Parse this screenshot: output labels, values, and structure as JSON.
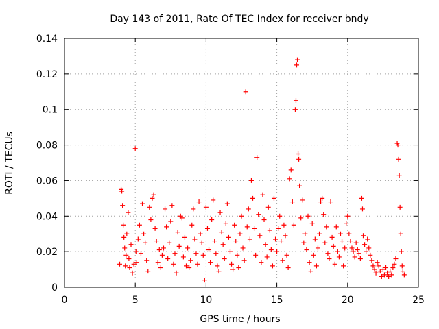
{
  "chart_data": {
    "type": "scatter",
    "title": "Day 143 of 2011, Rate Of TEC Index for receiver bndy",
    "xlabel": "GPS time / hours",
    "ylabel": "ROTI / TECUs",
    "xlim": [
      0,
      25
    ],
    "ylim": [
      0,
      0.14
    ],
    "xticks": [
      0,
      5,
      10,
      15,
      20,
      25
    ],
    "yticks": [
      0,
      0.02,
      0.04,
      0.06,
      0.08,
      0.1,
      0.12,
      0.14
    ],
    "ytick_labels": [
      "0",
      "0.02",
      "0.04",
      "0.06",
      "0.08",
      "0.1",
      "0.12",
      "0.14"
    ],
    "grid": true,
    "marker": "plus",
    "color": "#ff0000",
    "series": [
      {
        "points": [
          [
            3.9,
            0.013
          ],
          [
            4.0,
            0.055
          ],
          [
            4.05,
            0.054
          ],
          [
            4.1,
            0.046
          ],
          [
            4.15,
            0.035
          ],
          [
            4.2,
            0.028
          ],
          [
            4.25,
            0.022
          ],
          [
            4.3,
            0.012
          ],
          [
            4.35,
            0.018
          ],
          [
            4.4,
            0.03
          ],
          [
            4.5,
            0.042
          ],
          [
            4.55,
            0.016
          ],
          [
            4.6,
            0.011
          ],
          [
            4.7,
            0.024
          ],
          [
            4.8,
            0.008
          ],
          [
            4.9,
            0.013
          ],
          [
            5.0,
            0.078
          ],
          [
            5.05,
            0.02
          ],
          [
            5.1,
            0.014
          ],
          [
            5.2,
            0.027
          ],
          [
            5.3,
            0.035
          ],
          [
            5.4,
            0.019
          ],
          [
            5.5,
            0.047
          ],
          [
            5.6,
            0.03
          ],
          [
            5.7,
            0.025
          ],
          [
            5.8,
            0.015
          ],
          [
            5.9,
            0.009
          ],
          [
            6.0,
            0.045
          ],
          [
            6.1,
            0.038
          ],
          [
            6.2,
            0.05
          ],
          [
            6.3,
            0.052
          ],
          [
            6.4,
            0.033
          ],
          [
            6.5,
            0.026
          ],
          [
            6.6,
            0.014
          ],
          [
            6.7,
            0.021
          ],
          [
            6.8,
            0.011
          ],
          [
            6.9,
            0.018
          ],
          [
            7.0,
            0.022
          ],
          [
            7.1,
            0.044
          ],
          [
            7.2,
            0.034
          ],
          [
            7.3,
            0.016
          ],
          [
            7.4,
            0.025
          ],
          [
            7.5,
            0.037
          ],
          [
            7.6,
            0.046
          ],
          [
            7.7,
            0.013
          ],
          [
            7.8,
            0.019
          ],
          [
            7.9,
            0.008
          ],
          [
            8.0,
            0.031
          ],
          [
            8.1,
            0.023
          ],
          [
            8.2,
            0.04
          ],
          [
            8.3,
            0.039
          ],
          [
            8.4,
            0.017
          ],
          [
            8.5,
            0.028
          ],
          [
            8.6,
            0.012
          ],
          [
            8.7,
            0.022
          ],
          [
            8.8,
            0.011
          ],
          [
            8.9,
            0.015
          ],
          [
            9.0,
            0.035
          ],
          [
            9.1,
            0.044
          ],
          [
            9.2,
            0.027
          ],
          [
            9.3,
            0.019
          ],
          [
            9.4,
            0.013
          ],
          [
            9.5,
            0.048
          ],
          [
            9.6,
            0.03
          ],
          [
            9.7,
            0.025
          ],
          [
            9.8,
            0.018
          ],
          [
            9.9,
            0.004
          ],
          [
            10.0,
            0.045
          ],
          [
            10.1,
            0.033
          ],
          [
            10.2,
            0.021
          ],
          [
            10.3,
            0.014
          ],
          [
            10.4,
            0.038
          ],
          [
            10.5,
            0.049
          ],
          [
            10.6,
            0.026
          ],
          [
            10.7,
            0.019
          ],
          [
            10.8,
            0.012
          ],
          [
            10.9,
            0.009
          ],
          [
            11.0,
            0.042
          ],
          [
            11.1,
            0.031
          ],
          [
            11.2,
            0.024
          ],
          [
            11.3,
            0.016
          ],
          [
            11.4,
            0.036
          ],
          [
            11.5,
            0.047
          ],
          [
            11.6,
            0.028
          ],
          [
            11.7,
            0.02
          ],
          [
            11.8,
            0.013
          ],
          [
            11.9,
            0.01
          ],
          [
            12.0,
            0.035
          ],
          [
            12.1,
            0.026
          ],
          [
            12.2,
            0.018
          ],
          [
            12.3,
            0.011
          ],
          [
            12.4,
            0.03
          ],
          [
            12.5,
            0.04
          ],
          [
            12.6,
            0.022
          ],
          [
            12.7,
            0.015
          ],
          [
            12.8,
            0.11
          ],
          [
            12.9,
            0.034
          ],
          [
            13.0,
            0.044
          ],
          [
            13.1,
            0.027
          ],
          [
            13.2,
            0.06
          ],
          [
            13.3,
            0.05
          ],
          [
            13.4,
            0.033
          ],
          [
            13.5,
            0.018
          ],
          [
            13.6,
            0.073
          ],
          [
            13.7,
            0.041
          ],
          [
            13.8,
            0.029
          ],
          [
            13.9,
            0.014
          ],
          [
            14.0,
            0.052
          ],
          [
            14.1,
            0.038
          ],
          [
            14.2,
            0.024
          ],
          [
            14.3,
            0.017
          ],
          [
            14.4,
            0.045
          ],
          [
            14.5,
            0.032
          ],
          [
            14.6,
            0.021
          ],
          [
            14.7,
            0.012
          ],
          [
            14.8,
            0.05
          ],
          [
            14.9,
            0.027
          ],
          [
            15.0,
            0.02
          ],
          [
            15.1,
            0.033
          ],
          [
            15.2,
            0.04
          ],
          [
            15.3,
            0.026
          ],
          [
            15.4,
            0.015
          ],
          [
            15.5,
            0.035
          ],
          [
            15.6,
            0.029
          ],
          [
            15.7,
            0.018
          ],
          [
            15.8,
            0.011
          ],
          [
            15.9,
            0.061
          ],
          [
            16.0,
            0.066
          ],
          [
            16.1,
            0.048
          ],
          [
            16.2,
            0.035
          ],
          [
            16.3,
            0.1
          ],
          [
            16.35,
            0.105
          ],
          [
            16.4,
            0.125
          ],
          [
            16.45,
            0.128
          ],
          [
            16.5,
            0.075
          ],
          [
            16.55,
            0.072
          ],
          [
            16.6,
            0.057
          ],
          [
            16.7,
            0.039
          ],
          [
            16.8,
            0.049
          ],
          [
            16.9,
            0.025
          ],
          [
            17.0,
            0.03
          ],
          [
            17.1,
            0.021
          ],
          [
            17.2,
            0.04
          ],
          [
            17.3,
            0.014
          ],
          [
            17.4,
            0.009
          ],
          [
            17.5,
            0.036
          ],
          [
            17.6,
            0.018
          ],
          [
            17.7,
            0.027
          ],
          [
            17.8,
            0.012
          ],
          [
            17.9,
            0.022
          ],
          [
            18.0,
            0.03
          ],
          [
            18.1,
            0.048
          ],
          [
            18.2,
            0.05
          ],
          [
            18.3,
            0.041
          ],
          [
            18.4,
            0.025
          ],
          [
            18.5,
            0.034
          ],
          [
            18.6,
            0.019
          ],
          [
            18.7,
            0.016
          ],
          [
            18.8,
            0.048
          ],
          [
            18.9,
            0.028
          ],
          [
            19.0,
            0.023
          ],
          [
            19.1,
            0.013
          ],
          [
            19.2,
            0.034
          ],
          [
            19.3,
            0.02
          ],
          [
            19.4,
            0.017
          ],
          [
            19.5,
            0.03
          ],
          [
            19.6,
            0.026
          ],
          [
            19.7,
            0.012
          ],
          [
            19.8,
            0.022
          ],
          [
            19.9,
            0.036
          ],
          [
            20.0,
            0.04
          ],
          [
            20.1,
            0.03
          ],
          [
            20.2,
            0.026
          ],
          [
            20.3,
            0.022
          ],
          [
            20.4,
            0.02
          ],
          [
            20.5,
            0.017
          ],
          [
            20.6,
            0.025
          ],
          [
            20.7,
            0.021
          ],
          [
            20.8,
            0.019
          ],
          [
            20.9,
            0.016
          ],
          [
            21.0,
            0.05
          ],
          [
            21.05,
            0.044
          ],
          [
            21.1,
            0.029
          ],
          [
            21.2,
            0.024
          ],
          [
            21.3,
            0.02
          ],
          [
            21.4,
            0.027
          ],
          [
            21.5,
            0.022
          ],
          [
            21.6,
            0.018
          ],
          [
            21.7,
            0.015
          ],
          [
            21.8,
            0.012
          ],
          [
            21.9,
            0.01
          ],
          [
            22.0,
            0.008
          ],
          [
            22.1,
            0.014
          ],
          [
            22.2,
            0.012
          ],
          [
            22.3,
            0.009
          ],
          [
            22.4,
            0.006
          ],
          [
            22.5,
            0.01
          ],
          [
            22.6,
            0.007
          ],
          [
            22.7,
            0.011
          ],
          [
            22.8,
            0.008
          ],
          [
            22.9,
            0.006
          ],
          [
            23.0,
            0.009
          ],
          [
            23.1,
            0.007
          ],
          [
            23.2,
            0.011
          ],
          [
            23.3,
            0.013
          ],
          [
            23.4,
            0.016
          ],
          [
            23.5,
            0.081
          ],
          [
            23.55,
            0.08
          ],
          [
            23.6,
            0.072
          ],
          [
            23.65,
            0.063
          ],
          [
            23.7,
            0.045
          ],
          [
            23.75,
            0.03
          ],
          [
            23.8,
            0.02
          ],
          [
            23.85,
            0.012
          ],
          [
            23.9,
            0.009
          ],
          [
            24.0,
            0.007
          ]
        ]
      }
    ]
  }
}
